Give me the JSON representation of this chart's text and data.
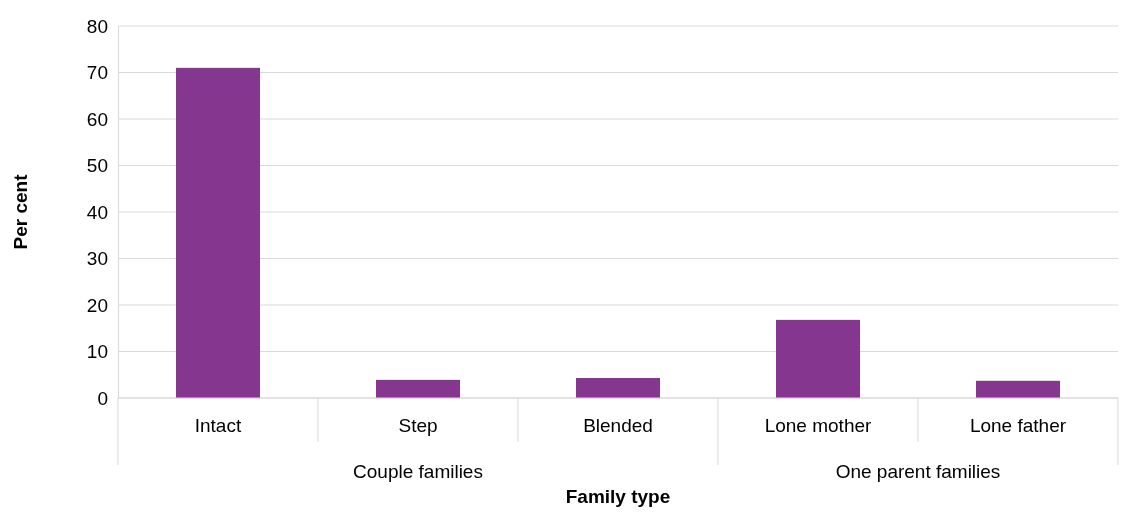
{
  "chart_data": {
    "type": "bar",
    "xlabel": "Family type",
    "ylabel": "Per cent",
    "categories": [
      "Intact",
      "Step",
      "Blended",
      "Lone mother",
      "Lone father"
    ],
    "values": [
      71,
      3.9,
      4.3,
      16.8,
      3.7
    ],
    "color": "#85368f",
    "ylim": [
      0,
      80
    ],
    "yticks": [
      0,
      10,
      20,
      30,
      40,
      50,
      60,
      70,
      80
    ],
    "grid": "y",
    "annotations": [
      "Couple families",
      "One parent families"
    ]
  }
}
